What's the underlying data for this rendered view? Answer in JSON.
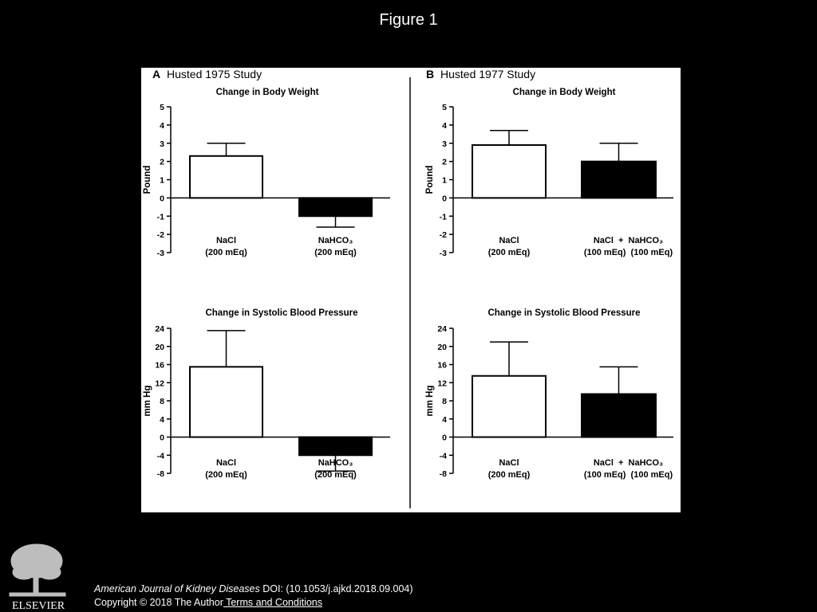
{
  "slide": {
    "title": "Figure 1"
  },
  "panels": {
    "A": {
      "letter": "A",
      "study": "Husted 1975 Study"
    },
    "B": {
      "letter": "B",
      "study": "Husted 1977 Study"
    }
  },
  "chart_data": [
    {
      "type": "bar",
      "panel": "A",
      "title": "Change in Body Weight",
      "ylabel": "Pound",
      "ylim": [
        -3,
        5
      ],
      "yticks": [
        5,
        4,
        3,
        2,
        1,
        0,
        -1,
        -2,
        -3
      ],
      "categories": [
        {
          "lines": [
            "NaCl",
            "(200 mEq)"
          ]
        },
        {
          "lines": [
            "NaHCO₃",
            "(200 mEq)"
          ]
        }
      ],
      "values": [
        2.3,
        -1.0
      ],
      "errors": [
        0.7,
        0.6
      ],
      "fills": [
        "#ffffff",
        "#000000"
      ]
    },
    {
      "type": "bar",
      "panel": "B",
      "title": "Change in Body Weight",
      "ylabel": "Pound",
      "ylim": [
        -3,
        5
      ],
      "yticks": [
        5,
        4,
        3,
        2,
        1,
        0,
        -1,
        -2,
        -3
      ],
      "categories": [
        {
          "lines": [
            "NaCl",
            "(200 mEq)"
          ]
        },
        {
          "lines": [
            "NaCl  +  NaHCO₃",
            "(100 mEq)  (100 mEq)"
          ]
        }
      ],
      "values": [
        2.9,
        2.0
      ],
      "errors": [
        0.8,
        1.0
      ],
      "fills": [
        "#ffffff",
        "#000000"
      ]
    },
    {
      "type": "bar",
      "panel": "A",
      "title": "Change in Systolic Blood Pressure",
      "ylabel": "mm Hg",
      "ylim": [
        -8,
        24
      ],
      "yticks": [
        24,
        20,
        16,
        12,
        8,
        4,
        0,
        -4,
        -8
      ],
      "categories": [
        {
          "lines": [
            "NaCl",
            "(200 mEq)"
          ]
        },
        {
          "lines": [
            "NaHCO₃",
            "(200 mEq)"
          ]
        }
      ],
      "values": [
        15.5,
        -4.0
      ],
      "errors": [
        8.0,
        3.5
      ],
      "fills": [
        "#ffffff",
        "#000000"
      ]
    },
    {
      "type": "bar",
      "panel": "B",
      "title": "Change in Systolic Blood Pressure",
      "ylabel": "mm Hg",
      "ylim": [
        -8,
        24
      ],
      "yticks": [
        24,
        20,
        16,
        12,
        8,
        4,
        0,
        -4,
        -8
      ],
      "categories": [
        {
          "lines": [
            "NaCl",
            "(200 mEq)"
          ]
        },
        {
          "lines": [
            "NaCl  +  NaHCO₃",
            "(100 mEq)  (100 mEq)"
          ]
        }
      ],
      "values": [
        13.5,
        9.5
      ],
      "errors": [
        7.5,
        6.0
      ],
      "fills": [
        "#ffffff",
        "#000000"
      ]
    }
  ],
  "footer": {
    "journal": "American Journal of Kidney Diseases",
    "doi": " DOI: (10.1053/j.ajkd.2018.09.004)",
    "copyright": "Copyright © 2018 The Author",
    "terms_link": " Terms and Conditions",
    "publisher_logo": "ELSEVIER"
  }
}
